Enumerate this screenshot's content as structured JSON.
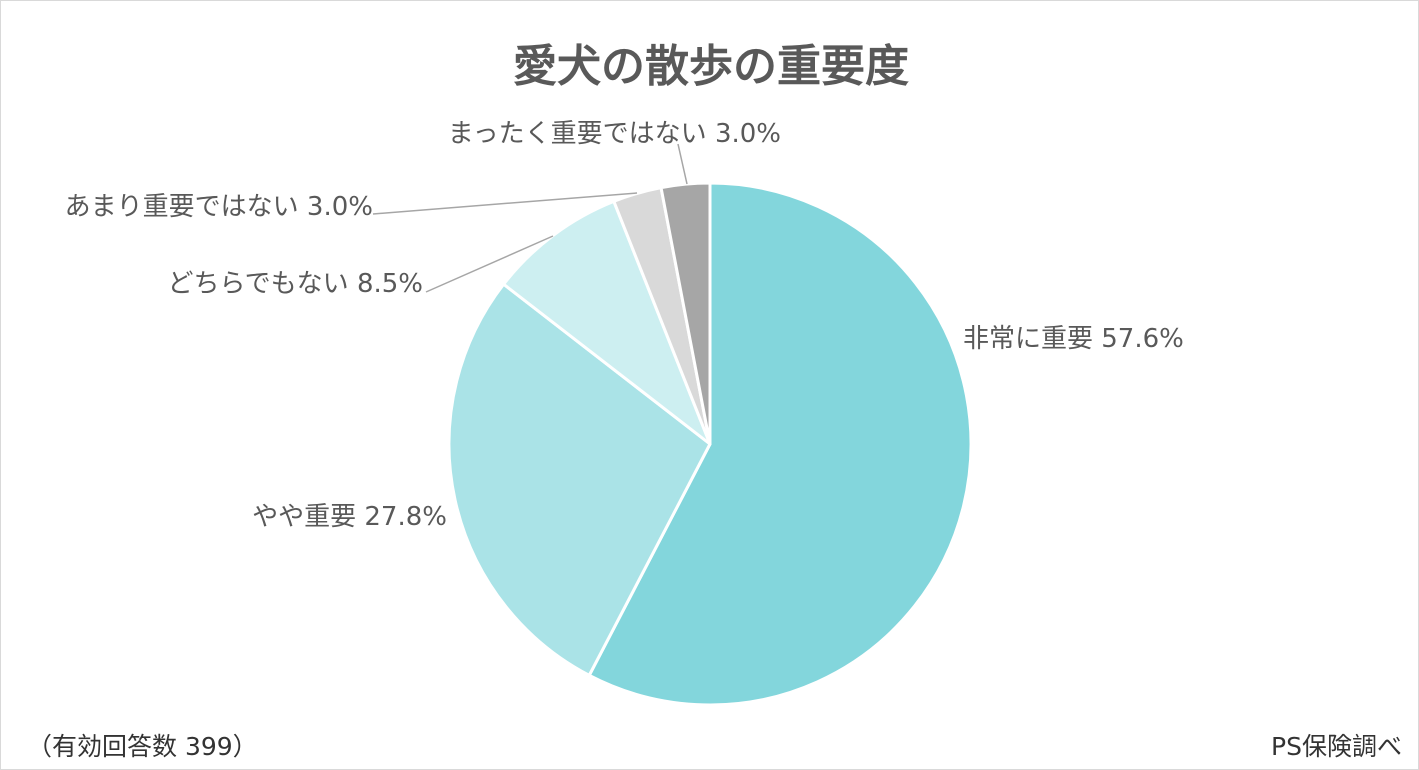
{
  "chart_data": {
    "type": "pie",
    "title": "愛犬の散歩の重要度",
    "slices": [
      {
        "label": "非常に重要 57.6%",
        "value": 57.6,
        "color": "#83d6dc"
      },
      {
        "label": "やや重要 27.8%",
        "value": 27.8,
        "color": "#aae3e7"
      },
      {
        "label": "どちらでもない 8.5%",
        "value": 8.5,
        "color": "#cdeff1"
      },
      {
        "label": "あまり重要ではない 3.0%",
        "value": 3.0,
        "color": "#d9d9d9"
      },
      {
        "label": "まったく重要ではない 3.0%",
        "value": 3.0,
        "color": "#a6a6a6"
      }
    ]
  },
  "footer": {
    "note": "（有効回答数 399）",
    "source": "PS保険調べ"
  }
}
